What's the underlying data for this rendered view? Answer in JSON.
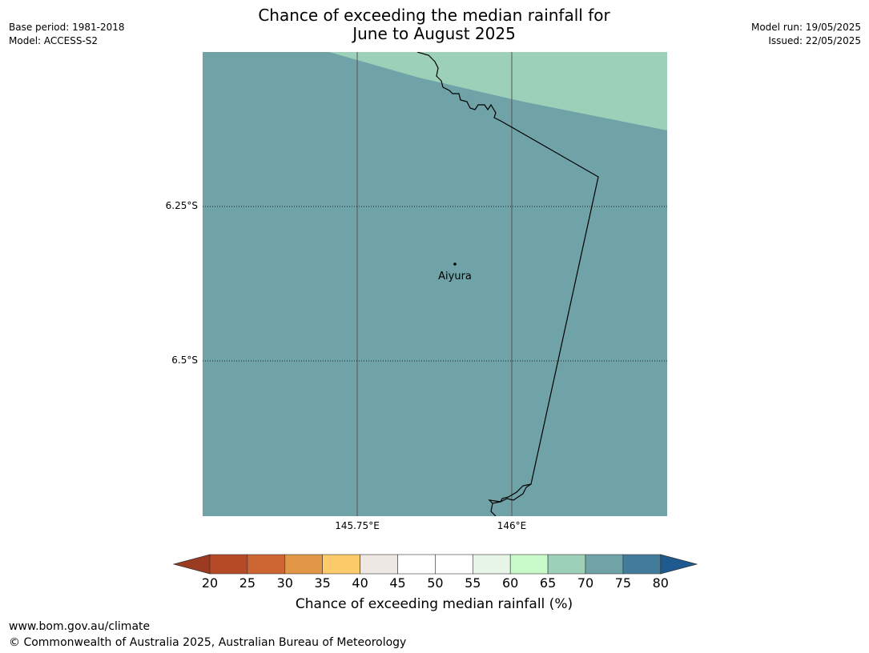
{
  "title": {
    "line1": "Chance of exceeding the median rainfall for",
    "line2": "June to August 2025"
  },
  "meta": {
    "base_period": "Base period: 1981-2018",
    "model": "Model: ACCESS-S2",
    "model_run": "Model run: 19/05/2025",
    "issued": "Issued: 22/05/2025"
  },
  "map": {
    "latitude_labels": [
      "6.25°S",
      "6.5°S"
    ],
    "longitude_labels": [
      "145.75°E",
      "146°E"
    ],
    "place_name": "Aiyura",
    "colors": {
      "fill_70_75": "#6fa3a8",
      "fill_65_70": "#9dd0b9",
      "boundary": "#000000",
      "gridline": "#555555"
    }
  },
  "colorbar": {
    "title": "Chance of exceeding median rainfall (%)",
    "ticks": [
      "20",
      "25",
      "30",
      "35",
      "40",
      "45",
      "50",
      "55",
      "60",
      "65",
      "70",
      "75",
      "80"
    ],
    "colors": [
      "#9a3b22",
      "#b64a27",
      "#cd6633",
      "#e29747",
      "#fdcb69",
      "#ede8e3",
      "#ffffff",
      "#ffffff",
      "#e8f6e8",
      "#c9fac9",
      "#9dd0b9",
      "#6fa3a8",
      "#437c9b",
      "#1e5a90"
    ]
  },
  "footer": {
    "url": "www.bom.gov.au/climate",
    "copyright": "© Commonwealth of Australia 2025, Australian Bureau of Meteorology"
  }
}
